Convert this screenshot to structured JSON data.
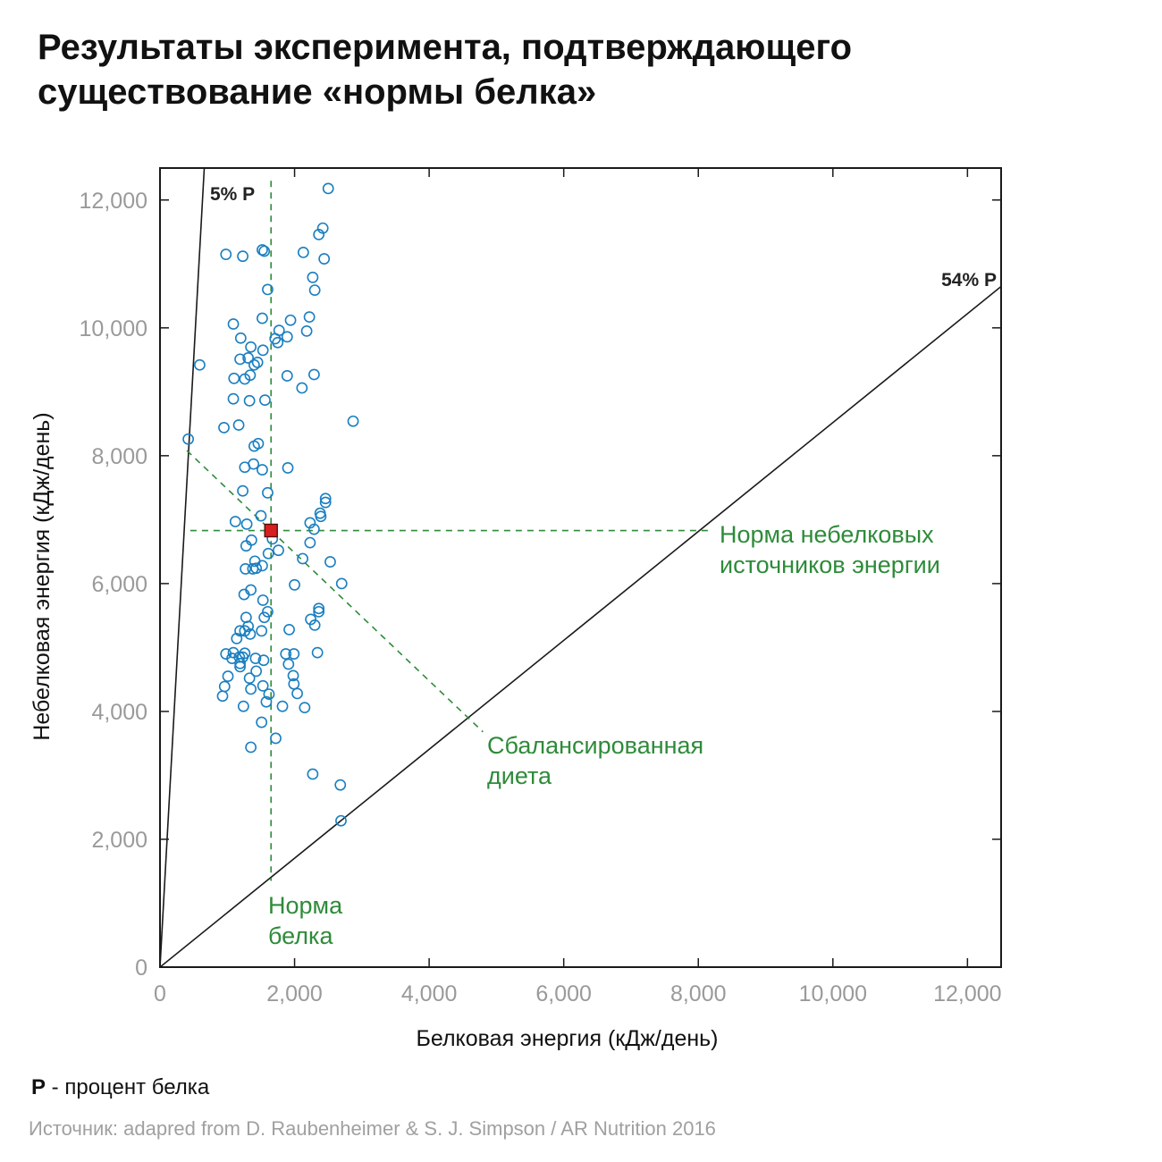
{
  "title_line1": "Результаты эксперимента, подтверждающего",
  "title_line2": "существование «нормы белка»",
  "note_key": "P",
  "note_text": " - процент белка",
  "source": "Источник: adapred from D. Raubenheimer & S. J. Simpson / AR Nutrition 2016",
  "colors": {
    "points": "#1a7fc0",
    "green": "#2e8b3a",
    "target_fill": "#d62020",
    "lines": "#1a1a1a",
    "ticks": "#9a9a9a"
  },
  "chart_data": {
    "type": "scatter",
    "xlabel": "Белковая энергия (кДж/день)",
    "ylabel": "Небелковая энергия (кДж/день)",
    "xlim": [
      0,
      12500
    ],
    "ylim": [
      0,
      12500
    ],
    "xticks": [
      0,
      2000,
      4000,
      6000,
      8000,
      10000,
      12000
    ],
    "yticks": [
      0,
      2000,
      4000,
      6000,
      8000,
      10000,
      12000
    ],
    "xtick_labels": [
      "0",
      "2,000",
      "4,000",
      "6,000",
      "8,000",
      "10,000",
      "12,000"
    ],
    "ytick_labels": [
      "0",
      "2,000",
      "4,000",
      "6,000",
      "8,000",
      "10,000",
      "12,000"
    ],
    "grid": false,
    "reference_lines": [
      {
        "label": "5% P",
        "protein_fraction": 0.05
      },
      {
        "label": "54% P",
        "protein_fraction": 0.54
      }
    ],
    "target": {
      "x": 1650,
      "y": 6830
    },
    "annotations": {
      "protein_target": [
        "Норма",
        "белка"
      ],
      "nonprotein_target": [
        "Норма небелковых",
        "источников энергии"
      ],
      "balanced_diet": [
        "Сбалансированная",
        "диета"
      ]
    },
    "points": [
      [
        2500,
        12180
      ],
      [
        2420,
        11560
      ],
      [
        2360,
        11460
      ],
      [
        1520,
        11220
      ],
      [
        1550,
        11200
      ],
      [
        980,
        11150
      ],
      [
        1230,
        11120
      ],
      [
        2130,
        11180
      ],
      [
        2440,
        11080
      ],
      [
        2270,
        10790
      ],
      [
        1600,
        10600
      ],
      [
        2300,
        10590
      ],
      [
        1090,
        10060
      ],
      [
        1520,
        10150
      ],
      [
        2220,
        10170
      ],
      [
        1940,
        10120
      ],
      [
        1770,
        9960
      ],
      [
        2180,
        9950
      ],
      [
        1890,
        9860
      ],
      [
        1710,
        9830
      ],
      [
        1750,
        9770
      ],
      [
        1200,
        9840
      ],
      [
        1350,
        9700
      ],
      [
        1530,
        9650
      ],
      [
        1310,
        9530
      ],
      [
        1190,
        9510
      ],
      [
        1450,
        9460
      ],
      [
        1400,
        9420
      ],
      [
        590,
        9420
      ],
      [
        1100,
        9210
      ],
      [
        1260,
        9200
      ],
      [
        1340,
        9260
      ],
      [
        1890,
        9250
      ],
      [
        2290,
        9270
      ],
      [
        2110,
        9060
      ],
      [
        1090,
        8890
      ],
      [
        1330,
        8860
      ],
      [
        1560,
        8870
      ],
      [
        2870,
        8540
      ],
      [
        1170,
        8480
      ],
      [
        950,
        8440
      ],
      [
        420,
        8260
      ],
      [
        1460,
        8190
      ],
      [
        1400,
        8150
      ],
      [
        1520,
        7780
      ],
      [
        1900,
        7810
      ],
      [
        1260,
        7820
      ],
      [
        1390,
        7870
      ],
      [
        1230,
        7450
      ],
      [
        1600,
        7420
      ],
      [
        2460,
        7330
      ],
      [
        2460,
        7270
      ],
      [
        2380,
        7100
      ],
      [
        2390,
        7050
      ],
      [
        1500,
        7060
      ],
      [
        1120,
        6970
      ],
      [
        1290,
        6930
      ],
      [
        2230,
        6950
      ],
      [
        2290,
        6850
      ],
      [
        1670,
        6700
      ],
      [
        1360,
        6680
      ],
      [
        1280,
        6590
      ],
      [
        2230,
        6640
      ],
      [
        1760,
        6520
      ],
      [
        1610,
        6470
      ],
      [
        1410,
        6350
      ],
      [
        2120,
        6390
      ],
      [
        2530,
        6340
      ],
      [
        1520,
        6280
      ],
      [
        1270,
        6230
      ],
      [
        1380,
        6230
      ],
      [
        1430,
        6240
      ],
      [
        2700,
        6000
      ],
      [
        2000,
        5980
      ],
      [
        1350,
        5900
      ],
      [
        1250,
        5830
      ],
      [
        1530,
        5740
      ],
      [
        1600,
        5560
      ],
      [
        2360,
        5610
      ],
      [
        2360,
        5560
      ],
      [
        1280,
        5470
      ],
      [
        1550,
        5470
      ],
      [
        2240,
        5440
      ],
      [
        2300,
        5350
      ],
      [
        1310,
        5330
      ],
      [
        1190,
        5260
      ],
      [
        1260,
        5260
      ],
      [
        1510,
        5260
      ],
      [
        1920,
        5280
      ],
      [
        1340,
        5210
      ],
      [
        1140,
        5140
      ],
      [
        980,
        4900
      ],
      [
        1090,
        4920
      ],
      [
        1260,
        4910
      ],
      [
        1070,
        4830
      ],
      [
        1180,
        4850
      ],
      [
        1230,
        4850
      ],
      [
        1420,
        4830
      ],
      [
        1540,
        4800
      ],
      [
        1870,
        4900
      ],
      [
        1990,
        4900
      ],
      [
        2340,
        4920
      ],
      [
        1190,
        4750
      ],
      [
        1190,
        4700
      ],
      [
        1910,
        4740
      ],
      [
        1430,
        4630
      ],
      [
        1980,
        4560
      ],
      [
        1010,
        4550
      ],
      [
        1330,
        4520
      ],
      [
        1530,
        4400
      ],
      [
        1990,
        4430
      ],
      [
        960,
        4390
      ],
      [
        1350,
        4350
      ],
      [
        1620,
        4270
      ],
      [
        2040,
        4280
      ],
      [
        930,
        4240
      ],
      [
        1580,
        4150
      ],
      [
        1240,
        4080
      ],
      [
        1820,
        4080
      ],
      [
        2150,
        4060
      ],
      [
        1510,
        3830
      ],
      [
        1720,
        3580
      ],
      [
        1350,
        3440
      ],
      [
        2270,
        3020
      ],
      [
        2680,
        2850
      ],
      [
        2690,
        2290
      ]
    ]
  }
}
